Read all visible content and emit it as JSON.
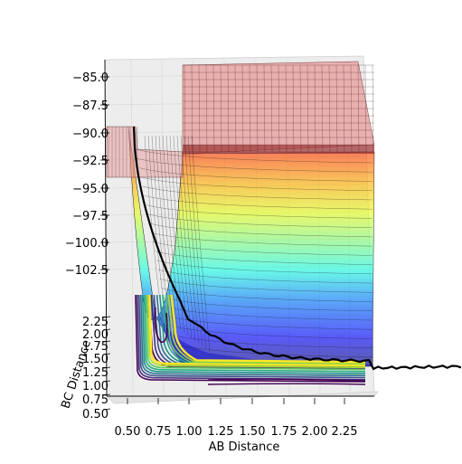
{
  "chart_data": {
    "type": "surface",
    "title": "",
    "xlabel": "AB Distance",
    "ylabel": "BC Distance",
    "zlabel": "",
    "x_ticks": [
      "0.50",
      "0.75",
      "1.00",
      "1.25",
      "1.50",
      "1.75",
      "2.00",
      "2.25"
    ],
    "y_ticks": [
      "0.50",
      "0.75",
      "1.00",
      "1.25",
      "1.50",
      "1.75",
      "2.00",
      "2.25"
    ],
    "z_ticks": [
      "−85.0",
      "−87.5",
      "−90.0",
      "−92.5",
      "−95.0",
      "−97.5",
      "−100.0",
      "−102.5"
    ],
    "xlim": [
      0.5,
      2.4
    ],
    "ylim": [
      0.5,
      2.4
    ],
    "zlim": [
      -105,
      -84
    ],
    "surface_colormap": "jet",
    "surface_cap_color": "#e8a9a9",
    "contour_colormap": "viridis",
    "trajectory_color": "#000000",
    "grid": true
  }
}
